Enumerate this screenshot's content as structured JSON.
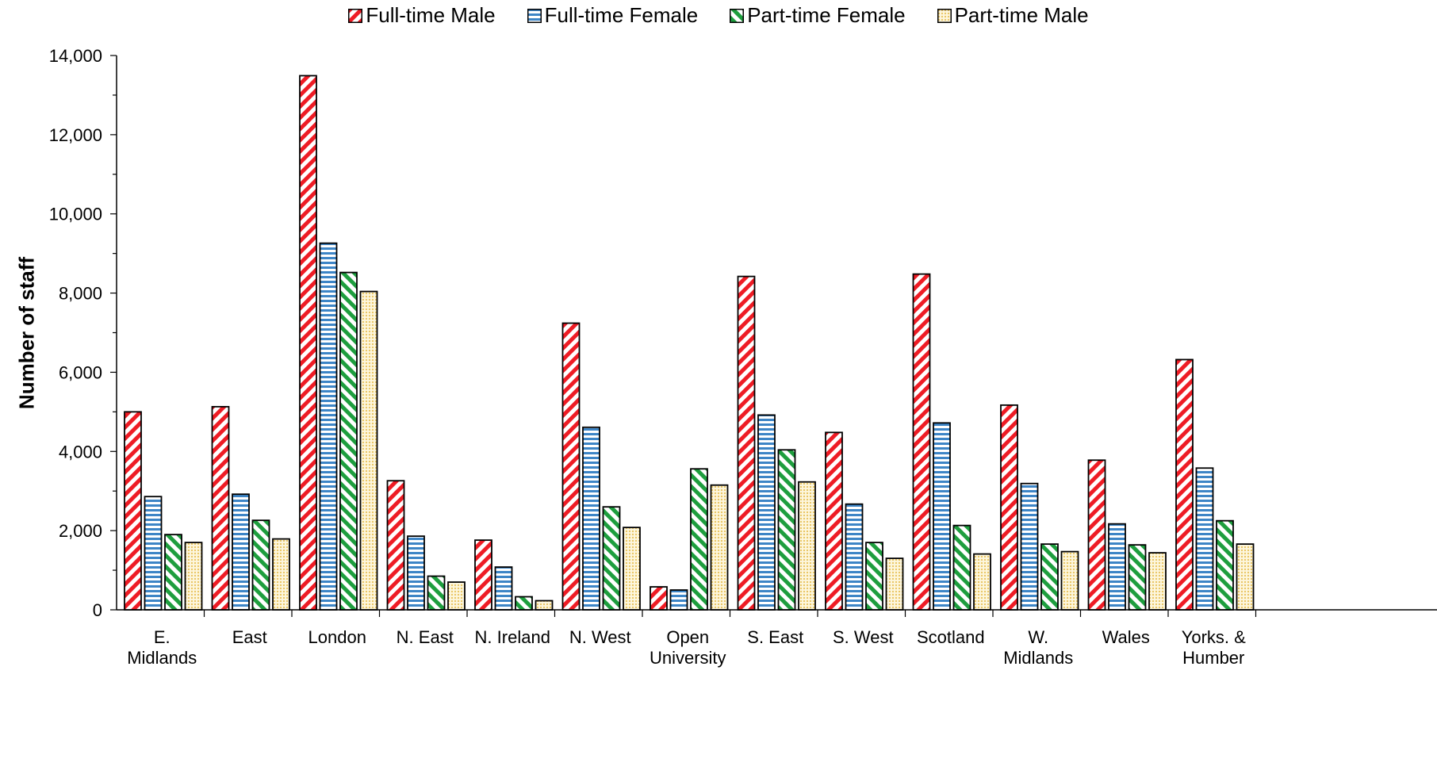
{
  "chart_data": {
    "type": "bar",
    "ylabel": "Number of staff",
    "ylim": [
      0,
      14000
    ],
    "yticks": [
      "0",
      "2,000",
      "4,000",
      "6,000",
      "8,000",
      "10,000",
      "12,000",
      "14,000"
    ],
    "grid": false,
    "legend_position": "top",
    "categories": [
      [
        "E.",
        "Midlands"
      ],
      [
        "East"
      ],
      [
        "London"
      ],
      [
        "N. East"
      ],
      [
        "N. Ireland"
      ],
      [
        "N. West"
      ],
      [
        "Open",
        "University"
      ],
      [
        "S. East"
      ],
      [
        "S. West"
      ],
      [
        "Scotland"
      ],
      [
        "W.",
        "Midlands"
      ],
      [
        "Wales"
      ],
      [
        "Yorks. &",
        "Humber"
      ]
    ],
    "series": [
      {
        "name": "Full-time Male",
        "color": "#ee1c25",
        "pattern": "diagonal-up",
        "values": [
          5000,
          5130,
          13490,
          3260,
          1760,
          7240,
          580,
          8420,
          4480,
          8480,
          5170,
          3780,
          6320
        ]
      },
      {
        "name": "Full-time Female",
        "color": "#3d85c6",
        "pattern": "horizontal",
        "values": [
          2860,
          2920,
          9260,
          1860,
          1080,
          4610,
          500,
          4920,
          2670,
          4720,
          3190,
          2170,
          3580
        ]
      },
      {
        "name": "Part-time Female",
        "color": "#1e9e3e",
        "pattern": "diagonal-down",
        "values": [
          1900,
          2260,
          8520,
          850,
          330,
          2600,
          3560,
          4040,
          1700,
          2130,
          1660,
          1640,
          2250
        ]
      },
      {
        "name": "Part-time Male",
        "color": "#f6e3a0",
        "pattern": "dots",
        "values": [
          1700,
          1790,
          8040,
          700,
          230,
          2080,
          3150,
          3230,
          1300,
          1410,
          1470,
          1440,
          1660
        ]
      }
    ]
  }
}
